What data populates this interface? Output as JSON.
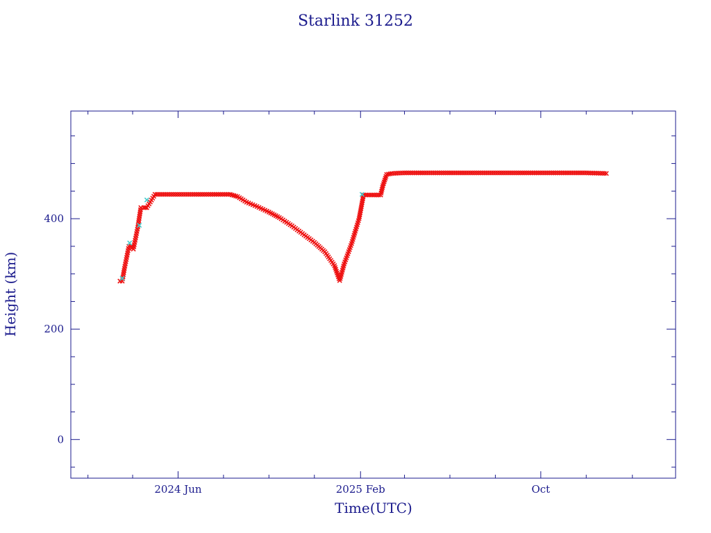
{
  "chart_data": {
    "type": "scatter",
    "title": "Starlink 31252",
    "xlabel": "Time(UTC)",
    "ylabel": "Height (km)",
    "x_ticks": [
      {
        "date": "2024-06-01",
        "label": "2024 Jun"
      },
      {
        "date": "2025-02-01",
        "label": "2025 Feb"
      },
      {
        "date": "2025-10-01",
        "label": "Oct"
      }
    ],
    "x_minor_ticks": [
      "2024-02-01",
      "2024-04-01",
      "2024-08-01",
      "2024-10-01",
      "2024-12-01",
      "2025-04-01",
      "2025-06-01",
      "2025-08-01",
      "2025-12-01",
      "2026-02-01"
    ],
    "xlim": [
      "2024-01-09",
      "2026-03-31"
    ],
    "ylim": [
      -70,
      595
    ],
    "y_ticks": [
      0,
      200,
      400
    ],
    "y_minor_step": 50,
    "grid": false,
    "series": [
      {
        "color": "#ee1111",
        "marker": "x",
        "x": [
          "2024-03-15",
          "2024-03-18",
          "2024-03-21",
          "2024-03-24",
          "2024-03-27",
          "2024-03-30",
          "2024-04-02",
          "2024-04-05",
          "2024-04-08",
          "2024-04-12",
          "2024-04-16",
          "2024-04-18",
          "2024-04-20",
          "2024-05-01",
          "2024-05-20",
          "2024-06-20",
          "2024-07-20",
          "2024-08-10",
          "2024-08-20",
          "2024-09-01",
          "2024-09-15",
          "2024-10-01",
          "2024-10-15",
          "2024-11-01",
          "2024-11-15",
          "2024-12-01",
          "2024-12-15",
          "2024-12-28",
          "2025-01-04",
          "2025-01-10",
          "2025-01-20",
          "2025-01-30",
          "2025-02-05",
          "2025-02-10",
          "2025-02-20",
          "2025-02-28",
          "2025-03-03",
          "2025-03-08",
          "2025-03-15",
          "2025-04-01",
          "2025-05-01",
          "2025-06-01",
          "2025-07-01",
          "2025-08-01",
          "2025-09-01",
          "2025-10-01",
          "2025-11-01",
          "2025-12-01",
          "2025-12-28"
        ],
        "y": [
          287,
          287,
          310,
          330,
          350,
          350,
          345,
          365,
          385,
          420,
          420,
          420,
          420,
          444,
          444,
          444,
          444,
          444,
          440,
          430,
          422,
          412,
          402,
          387,
          373,
          357,
          340,
          315,
          288,
          318,
          355,
          400,
          443,
          443,
          443,
          443,
          460,
          480,
          482,
          483,
          483,
          483,
          483,
          483,
          483,
          483,
          483,
          483,
          482
        ]
      },
      {
        "color": "#44cccc",
        "marker": "x",
        "x": [
          "2024-03-18",
          "2024-03-28",
          "2024-04-10",
          "2024-04-20",
          "2025-02-03"
        ],
        "y": [
          292,
          356,
          388,
          434,
          444
        ]
      }
    ]
  }
}
